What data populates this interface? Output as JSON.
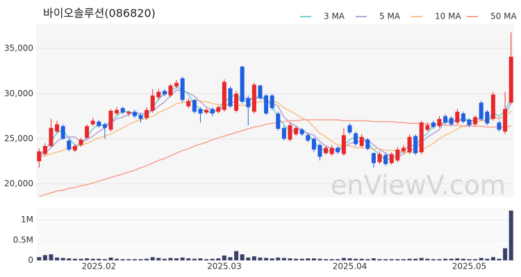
{
  "chart_data": [
    {
      "type": "candlestick",
      "title": "바이오솔루션(086820)",
      "watermark": "enViewV.com",
      "up_color": "#e8272b",
      "down_color": "#1f5fe0",
      "ylim": [
        18500,
        37700
      ],
      "yticks": [
        {
          "value": 20000,
          "label": "20,000"
        },
        {
          "value": 25000,
          "label": "25,000"
        },
        {
          "value": 30000,
          "label": "30,000"
        },
        {
          "value": 35000,
          "label": "35,000"
        }
      ],
      "grid": true,
      "open": [
        22500,
        23300,
        24200,
        25800,
        26400,
        24800,
        23700,
        24300,
        25100,
        26600,
        26900,
        26600,
        26000,
        27800,
        28400,
        27800,
        28000,
        27600,
        27300,
        28100,
        29600,
        30300,
        29800,
        30800,
        31700,
        28600,
        29300,
        28300,
        27900,
        28300,
        28000,
        28200,
        30600,
        28100,
        33000,
        29500,
        28000,
        30900,
        29800,
        29800,
        27800,
        26200,
        24900,
        25500,
        26000,
        25400,
        25000,
        24300,
        23400,
        23300,
        24000,
        23300,
        26500,
        25600,
        24200,
        24900,
        23400,
        22400,
        23200,
        22300,
        22600,
        23600,
        23500,
        25300,
        23500,
        26000,
        26800,
        26400,
        27500,
        27300,
        26800,
        27800,
        27100,
        26600,
        29000,
        28000,
        27200,
        26800,
        25800,
        29000
      ],
      "high": [
        23900,
        24500,
        27200,
        27000,
        26600,
        25000,
        24400,
        25100,
        26600,
        27300,
        27100,
        26800,
        28300,
        28500,
        28600,
        28100,
        28200,
        27800,
        28500,
        30500,
        30500,
        30500,
        31100,
        31500,
        31900,
        29500,
        29400,
        28500,
        28400,
        28500,
        28700,
        31600,
        30800,
        30300,
        33100,
        29800,
        31200,
        31000,
        30000,
        30000,
        28000,
        26400,
        26800,
        26400,
        26200,
        25600,
        25200,
        24500,
        24200,
        24300,
        24200,
        26200,
        26700,
        25800,
        25500,
        25100,
        23500,
        23600,
        23400,
        23500,
        24100,
        24300,
        25500,
        25500,
        27000,
        26800,
        27000,
        27500,
        27700,
        27500,
        28300,
        28000,
        27300,
        27600,
        29200,
        28200,
        30200,
        27000,
        30200,
        36800
      ],
      "low": [
        21800,
        23100,
        24000,
        25600,
        24900,
        23600,
        23500,
        24100,
        25000,
        26400,
        26200,
        25000,
        25800,
        27600,
        27700,
        27500,
        27300,
        26800,
        27100,
        27900,
        29300,
        29700,
        29600,
        30600,
        29000,
        28400,
        27800,
        26800,
        27700,
        27500,
        27800,
        28000,
        28400,
        27900,
        28900,
        26500,
        27800,
        29300,
        27600,
        28200,
        25900,
        24800,
        24700,
        25300,
        25300,
        24600,
        23500,
        22600,
        23200,
        23100,
        23300,
        23100,
        25500,
        24200,
        24000,
        23700,
        21800,
        22200,
        22000,
        22100,
        22400,
        23400,
        23300,
        23200,
        23300,
        25800,
        26100,
        26200,
        26600,
        26400,
        26600,
        26700,
        26300,
        26400,
        27000,
        26500,
        27000,
        25800,
        25500,
        28800
      ],
      "close": [
        23600,
        24200,
        26200,
        26600,
        25000,
        23800,
        24200,
        24900,
        26400,
        27000,
        26400,
        26200,
        28100,
        28200,
        27900,
        28000,
        27500,
        27200,
        28200,
        29800,
        30200,
        29900,
        30900,
        31200,
        29300,
        29200,
        28000,
        27800,
        28200,
        27800,
        28500,
        31300,
        28600,
        30000,
        29100,
        28500,
        31000,
        29500,
        27800,
        28400,
        26100,
        25000,
        26500,
        26200,
        25500,
        24800,
        23800,
        23000,
        24000,
        24000,
        23500,
        25400,
        25700,
        24400,
        25200,
        23900,
        22300,
        23300,
        22200,
        23300,
        23800,
        24000,
        25200,
        23400,
        26800,
        26500,
        26300,
        27200,
        26800,
        26600,
        28000,
        26900,
        26500,
        27400,
        27200,
        26700,
        29900,
        26000,
        28300,
        34100
      ],
      "series": [
        {
          "name": "3 MA",
          "color": "#6fcfcf",
          "values": [
            23300,
            23700,
            24700,
            25700,
            25900,
            25100,
            24300,
            24300,
            25200,
            26100,
            26600,
            26500,
            26900,
            27500,
            28100,
            28000,
            27800,
            27600,
            27600,
            28400,
            29400,
            30000,
            30300,
            30700,
            30500,
            29900,
            28800,
            28300,
            28000,
            27900,
            28200,
            29200,
            29500,
            30000,
            29200,
            29200,
            29500,
            29700,
            29400,
            28600,
            27400,
            26500,
            25900,
            25900,
            26100,
            25500,
            24700,
            23900,
            23600,
            23700,
            23800,
            24300,
            24900,
            25200,
            25100,
            24500,
            23800,
            23200,
            22600,
            22900,
            23100,
            23700,
            24300,
            24200,
            25100,
            25600,
            26500,
            26700,
            26800,
            26900,
            27100,
            27200,
            27100,
            26900,
            27000,
            27100,
            27900,
            27500,
            28100,
            29500
          ]
        },
        {
          "name": "5 MA",
          "color": "#b5a0d8",
          "values": [
            23200,
            23400,
            24000,
            24700,
            25100,
            25200,
            25200,
            24700,
            24900,
            25300,
            25800,
            26200,
            26800,
            27200,
            27400,
            27700,
            27900,
            27800,
            27800,
            28100,
            28600,
            29100,
            29800,
            30400,
            30300,
            30100,
            29700,
            29100,
            28500,
            28200,
            28100,
            28700,
            28900,
            29200,
            29500,
            29500,
            29400,
            29600,
            29200,
            29000,
            28600,
            27400,
            26800,
            26400,
            25900,
            25600,
            25400,
            24700,
            24200,
            23900,
            23700,
            24000,
            24500,
            24600,
            24800,
            24900,
            24300,
            23800,
            23400,
            23000,
            23000,
            23300,
            23700,
            23900,
            24600,
            25200,
            25600,
            26000,
            27100,
            26900,
            27000,
            27100,
            27000,
            27100,
            27200,
            26900,
            27500,
            27200,
            27600,
            29000
          ]
        },
        {
          "name": "10 MA",
          "color": "#f4c283",
          "values": [
            23000,
            23100,
            23300,
            23500,
            23700,
            23900,
            24100,
            24300,
            24500,
            24800,
            25100,
            25300,
            25500,
            25900,
            26200,
            26600,
            26900,
            27100,
            27300,
            27500,
            27900,
            28200,
            28500,
            28900,
            29000,
            29100,
            29200,
            29200,
            29100,
            28900,
            28800,
            28800,
            28700,
            28700,
            28700,
            28700,
            29000,
            29100,
            29100,
            29200,
            29000,
            28400,
            28100,
            27700,
            27300,
            27000,
            26300,
            25600,
            25200,
            24700,
            24300,
            24300,
            24200,
            24000,
            24000,
            23900,
            23900,
            23900,
            23700,
            23700,
            23700,
            23500,
            23500,
            23500,
            23700,
            24100,
            24500,
            25000,
            25400,
            25700,
            26100,
            26400,
            26600,
            26900,
            27000,
            27000,
            27300,
            27300,
            27400,
            28100
          ]
        },
        {
          "name": "50 MA",
          "color": "#f5a08c",
          "values": [
            18600,
            18800,
            19000,
            19200,
            19300,
            19500,
            19600,
            19800,
            19900,
            20100,
            20300,
            20500,
            20700,
            20900,
            21100,
            21300,
            21500,
            21800,
            22000,
            22300,
            22600,
            22800,
            23100,
            23400,
            23700,
            23900,
            24200,
            24400,
            24600,
            24900,
            25100,
            25300,
            25500,
            25700,
            25900,
            26100,
            26300,
            26400,
            26600,
            26700,
            26800,
            26900,
            27000,
            27000,
            27100,
            27100,
            27100,
            27100,
            27100,
            27100,
            27100,
            27000,
            27000,
            27000,
            27000,
            27000,
            26900,
            26900,
            26900,
            26900,
            26800,
            26800,
            26700,
            26700,
            26700,
            26600,
            26600,
            26600,
            26500,
            26500,
            26500,
            26400,
            26400,
            26400,
            26400,
            26300,
            26300,
            26300,
            26300,
            26400
          ]
        }
      ]
    },
    {
      "type": "bar",
      "color": "#3b4066",
      "categories": [
        null,
        null,
        null,
        null,
        null,
        null,
        null,
        null,
        null,
        null,
        "2025.02",
        null,
        null,
        null,
        null,
        null,
        null,
        null,
        null,
        null,
        null,
        null,
        null,
        null,
        null,
        null,
        null,
        null,
        null,
        null,
        null,
        "2025.03",
        null,
        null,
        null,
        null,
        null,
        null,
        null,
        null,
        null,
        null,
        null,
        null,
        null,
        null,
        null,
        null,
        null,
        null,
        null,
        null,
        "2025.04",
        null,
        null,
        null,
        null,
        null,
        null,
        null,
        null,
        null,
        null,
        null,
        null,
        null,
        null,
        null,
        null,
        null,
        null,
        null,
        "2025.05",
        null,
        null,
        null,
        null,
        null,
        null,
        null
      ],
      "values": [
        80000,
        130000,
        150000,
        70000,
        60000,
        50000,
        40000,
        40000,
        50000,
        40000,
        40000,
        30000,
        70000,
        40000,
        30000,
        30000,
        30000,
        30000,
        40000,
        80000,
        60000,
        40000,
        60000,
        50000,
        70000,
        50000,
        40000,
        50000,
        30000,
        40000,
        50000,
        120000,
        80000,
        230000,
        150000,
        70000,
        100000,
        70000,
        60000,
        50000,
        70000,
        60000,
        50000,
        40000,
        40000,
        50000,
        50000,
        40000,
        30000,
        30000,
        30000,
        60000,
        50000,
        40000,
        40000,
        30000,
        50000,
        30000,
        30000,
        30000,
        30000,
        30000,
        40000,
        40000,
        60000,
        40000,
        30000,
        30000,
        40000,
        40000,
        50000,
        40000,
        30000,
        30000,
        60000,
        40000,
        80000,
        40000,
        300000,
        1230000
      ],
      "ylim": [
        0,
        1300000
      ],
      "yticks": [
        0,
        {
          "value": 500000,
          "label": "0.5M"
        },
        {
          "value": 1000000,
          "label": "1M"
        }
      ]
    }
  ]
}
